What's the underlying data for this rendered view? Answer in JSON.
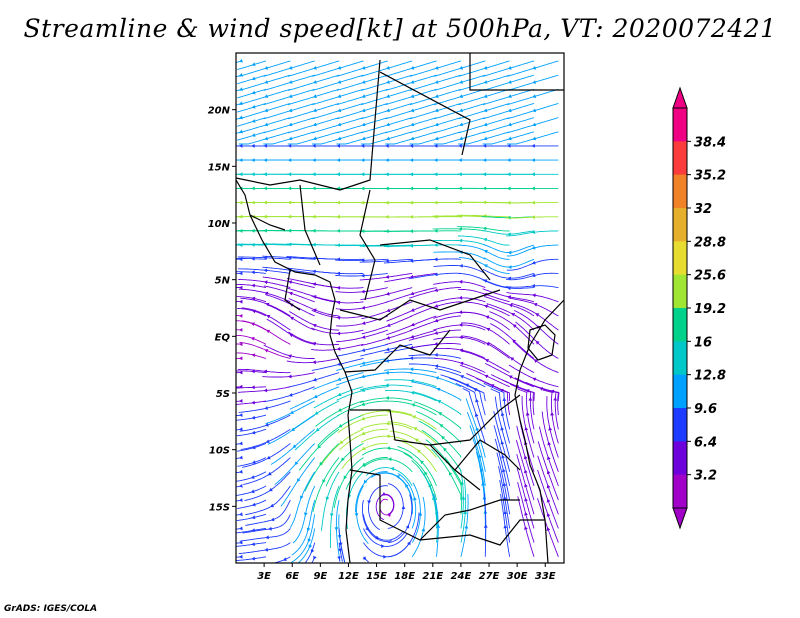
{
  "title": "Streamline & wind speed[kt] at 500hPa, VT: 2020072421",
  "credit": "GrADS: IGES/COLA",
  "chart_data": {
    "type": "streamline",
    "variable": "wind speed",
    "units": "kt",
    "level": "500hPa",
    "valid_time": "2020072421",
    "lon_range": [
      0,
      35
    ],
    "lat_range": [
      -20,
      25
    ],
    "x_tick_labels": [
      "3E",
      "6E",
      "9E",
      "12E",
      "15E",
      "18E",
      "21E",
      "24E",
      "27E",
      "30E",
      "33E"
    ],
    "x_tick_values": [
      3,
      6,
      9,
      12,
      15,
      18,
      21,
      24,
      27,
      30,
      33
    ],
    "y_tick_labels": [
      "20N",
      "15N",
      "10N",
      "5N",
      "EQ",
      "5S",
      "10S",
      "15S"
    ],
    "y_tick_values": [
      20,
      15,
      10,
      5,
      0,
      -5,
      -10,
      -15
    ],
    "colorbar_labels": [
      "3.2",
      "6.4",
      "9.6",
      "12.8",
      "16",
      "19.2",
      "25.6",
      "28.8",
      "32",
      "35.2",
      "38.4"
    ],
    "colorbar_colors": [
      "#a000c8",
      "#6e00dc",
      "#1e3cff",
      "#00a0ff",
      "#00c8c8",
      "#00d28c",
      "#a0e632",
      "#e6dc32",
      "#e6af2d",
      "#f08228",
      "#fa3c3c",
      "#f00082"
    ]
  }
}
